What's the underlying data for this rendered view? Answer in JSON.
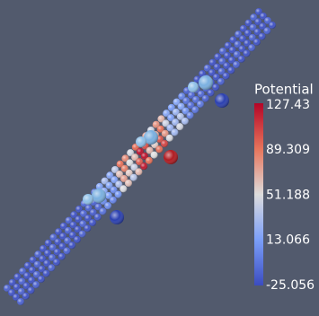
{
  "colorbar": {
    "title": "Potential",
    "ticks": [
      127.43,
      89.309,
      51.188,
      13.066,
      -25.056
    ]
  }
}
